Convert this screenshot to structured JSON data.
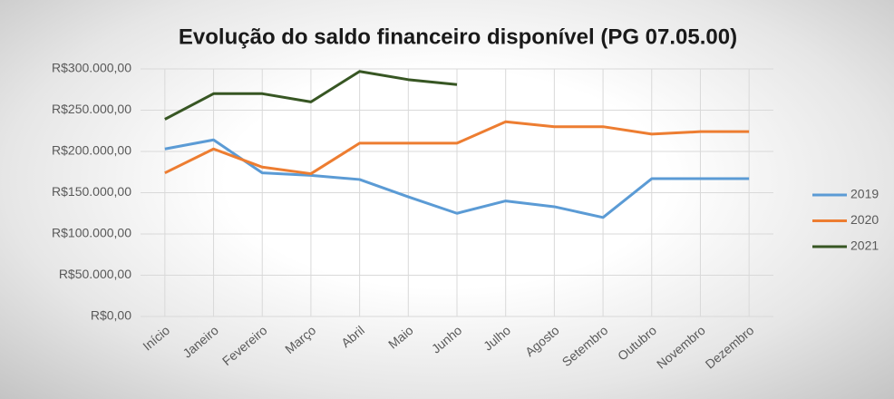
{
  "chart_data": {
    "type": "line",
    "title": "Evolução do saldo financeiro disponível (PG 07.05.00)",
    "categories": [
      "Início",
      "Janeiro",
      "Fevereiro",
      "Março",
      "Abril",
      "Maio",
      "Junho",
      "Julho",
      "Agosto",
      "Setembro",
      "Outubro",
      "Novembro",
      "Dezembro"
    ],
    "series": [
      {
        "name": "2019",
        "color": "#5b9bd5",
        "values": [
          203000,
          214000,
          174000,
          171000,
          166000,
          145000,
          125000,
          140000,
          133000,
          120000,
          167000,
          167000,
          167000
        ]
      },
      {
        "name": "2020",
        "color": "#ed7d31",
        "values": [
          174000,
          203000,
          181000,
          173000,
          210000,
          210000,
          210000,
          236000,
          230000,
          230000,
          221000,
          224000,
          224000
        ]
      },
      {
        "name": "2021",
        "color": "#375623",
        "values": [
          239000,
          270000,
          270000,
          260000,
          297000,
          287000,
          281000,
          null,
          null,
          null,
          null,
          null,
          null
        ]
      }
    ],
    "ylim": [
      0,
      300000
    ],
    "yticks": [
      {
        "value": 0,
        "label": "R$0,00"
      },
      {
        "value": 50000,
        "label": "R$50.000,00"
      },
      {
        "value": 100000,
        "label": "R$100.000,00"
      },
      {
        "value": 150000,
        "label": "R$150.000,00"
      },
      {
        "value": 200000,
        "label": "R$200.000,00"
      },
      {
        "value": 250000,
        "label": "R$250.000,00"
      },
      {
        "value": 300000,
        "label": "R$300.000,00"
      }
    ],
    "grid": true,
    "legend": "right"
  }
}
